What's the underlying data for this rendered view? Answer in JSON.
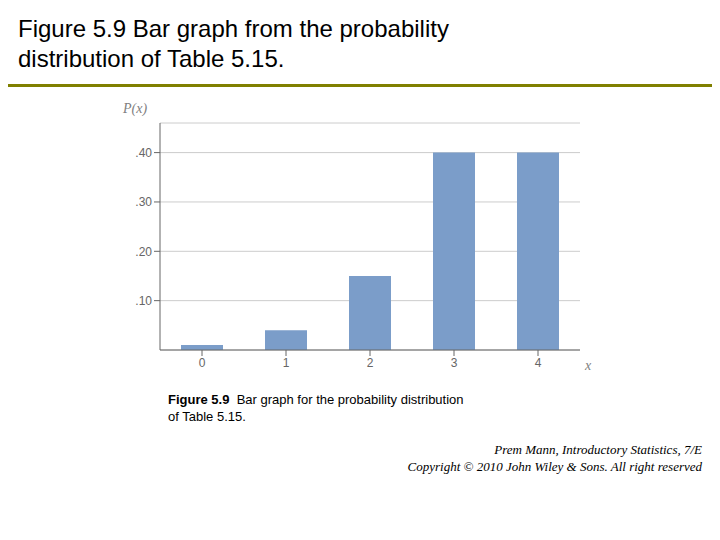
{
  "chart_data": {
    "type": "bar",
    "title": "Figure 5.9 Bar graph from the probability\ndistribution of Table 5.15.",
    "categories": [
      0,
      1,
      2,
      3,
      4
    ],
    "values": [
      0.01,
      0.04,
      0.15,
      0.4,
      0.4
    ],
    "color": "#7b9dc9",
    "xlabel": "x",
    "ylabel": "P(x)",
    "ylim": [
      0,
      0.46
    ],
    "yticks": [
      {
        "value": 0.1,
        "label": ".10"
      },
      {
        "value": 0.2,
        "label": ".20"
      },
      {
        "value": 0.3,
        "label": ".30"
      },
      {
        "value": 0.4,
        "label": ".40"
      }
    ],
    "grid": true,
    "annotations": [
      "Figure 5.9",
      "  Bar graph for the probability distribution\nof Table 5.15.",
      "Prem Mann, Introductory Statistics, 7/E\nCopyright © 2010 John Wiley & Sons. All right reserved"
    ]
  }
}
